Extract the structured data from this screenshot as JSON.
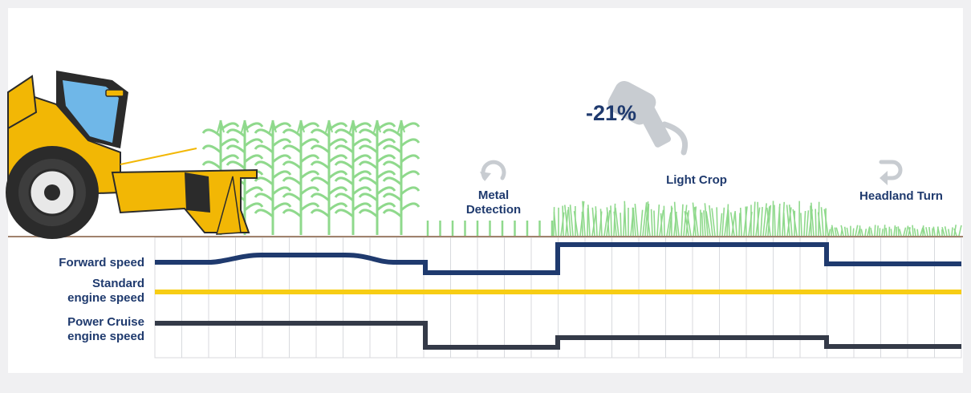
{
  "colors": {
    "background": "#f0f0f2",
    "panel": "#ffffff",
    "navy": "#1f3a6e",
    "dark_slate": "#343a48",
    "yellow": "#f7cd14",
    "crop_green": "#8fd98c",
    "ground_brown": "#a0826d",
    "grid": "#d8dade",
    "icon_grey": "#c8ccd1",
    "tractor_yellow": "#f2b705",
    "tractor_dark": "#2b2b2b"
  },
  "icons": {
    "metal": "rotate-cw-icon",
    "headland": "turn-back-icon",
    "fuel": "fuel-nozzle-icon"
  },
  "labels": {
    "fuel_saving": "-21%",
    "metal_line1": "Metal",
    "metal_line2": "Detection",
    "light_crop": "Light Crop",
    "headland": "Headland Turn",
    "forward_speed": "Forward speed",
    "standard_line1": "Standard",
    "standard_line2": "engine speed",
    "power_line1": "Power Cruise",
    "power_line2": "engine speed"
  }
}
